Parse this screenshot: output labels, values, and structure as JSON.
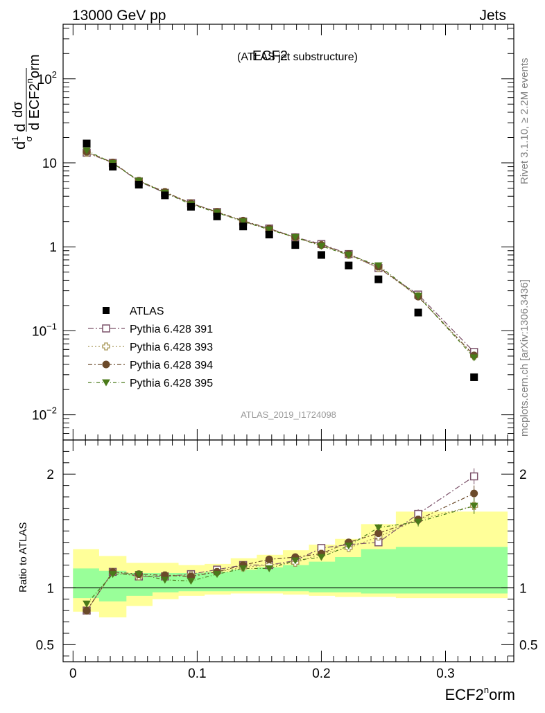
{
  "header": {
    "left": "13000 GeV pp",
    "right": "Jets"
  },
  "side_labels": {
    "rivet": "Rivet 3.1.10, ≥ 2.2M events",
    "mcplots": "mcplots.cern.ch [arXiv:1306.3436]"
  },
  "chart_data": {
    "type": "scatter",
    "title": "ECF2",
    "subtitle": "(ATLAS jet substructure)",
    "watermark": "ATLAS_2019_I1724098",
    "ylabel_main": "1/σ dσ/d ECF2^norm",
    "ylabel_ratio": "Ratio to ATLAS",
    "xlabel": "ECF2^norm",
    "xlim": [
      -0.008,
      0.355
    ],
    "ylim_main_log10": [
      -2.3,
      2.65
    ],
    "ylim_ratio": [
      0.35,
      2.3
    ],
    "log_y_main": true,
    "legend_position": "middle-left",
    "x_ticks": [
      "0",
      "0.1",
      "0.2",
      "0.3"
    ],
    "y_ticks_main": [
      "10^-2",
      "10^-1",
      "1",
      "10",
      "10^2"
    ],
    "y_ticks_ratio": [
      "0.5",
      "1",
      "2"
    ],
    "x": [
      0.011,
      0.032,
      0.053,
      0.074,
      0.095,
      0.116,
      0.137,
      0.158,
      0.179,
      0.2,
      0.222,
      0.246,
      0.278,
      0.323
    ],
    "bin_edges": [
      0,
      0.021,
      0.043,
      0.064,
      0.085,
      0.106,
      0.127,
      0.148,
      0.169,
      0.19,
      0.211,
      0.232,
      0.26,
      0.295,
      0.35
    ],
    "data": {
      "name": "ATLAS",
      "color": "#000000",
      "values": [
        17.0,
        9.0,
        5.5,
        4.1,
        3.0,
        2.3,
        1.75,
        1.4,
        1.05,
        0.8,
        0.6,
        0.41,
        0.165,
        0.028
      ]
    },
    "series": [
      {
        "name": "Pythia 6.428 391",
        "color": "#7a5068",
        "marker": "open-square",
        "dash": "8,3,2,3",
        "values": [
          13.2,
          10.0,
          6.0,
          4.4,
          3.3,
          2.6,
          2.0,
          1.65,
          1.3,
          1.08,
          0.82,
          0.56,
          0.27,
          0.056
        ]
      },
      {
        "name": "Pythia 6.428 393",
        "color": "#a89858",
        "marker": "open-cross",
        "dash": "2,3",
        "values": [
          13.2,
          10.0,
          6.1,
          4.5,
          3.3,
          2.6,
          2.0,
          1.62,
          1.28,
          1.05,
          0.8,
          0.56,
          0.26,
          0.05
        ]
      },
      {
        "name": "Pythia 6.428 394",
        "color": "#6b4a2a",
        "marker": "filled-circle",
        "dash": "6,3,2,3",
        "values": [
          13.5,
          10.1,
          6.1,
          4.5,
          3.3,
          2.6,
          2.05,
          1.65,
          1.3,
          1.05,
          0.82,
          0.58,
          0.255,
          0.051
        ]
      },
      {
        "name": "Pythia 6.428 395",
        "color": "#4a7a1a",
        "marker": "filled-triangle-down",
        "dash": "5,3,1,3",
        "values": [
          14.0,
          9.9,
          6.1,
          4.4,
          3.2,
          2.55,
          2.0,
          1.6,
          1.3,
          1.02,
          0.8,
          0.6,
          0.26,
          0.048
        ]
      }
    ],
    "ratios": [
      [
        0.8,
        1.14,
        1.1,
        1.1,
        1.12,
        1.16,
        1.2,
        1.2,
        1.24,
        1.35,
        1.38,
        1.4,
        1.65,
        1.98
      ],
      [
        0.8,
        1.14,
        1.1,
        1.11,
        1.11,
        1.14,
        1.18,
        1.2,
        1.22,
        1.3,
        1.35,
        1.45,
        1.6,
        1.72
      ],
      [
        0.8,
        1.14,
        1.12,
        1.11,
        1.1,
        1.14,
        1.2,
        1.25,
        1.27,
        1.3,
        1.4,
        1.48,
        1.6,
        1.83
      ],
      [
        0.86,
        1.12,
        1.12,
        1.07,
        1.06,
        1.12,
        1.17,
        1.17,
        1.24,
        1.27,
        1.37,
        1.53,
        1.58,
        1.72
      ]
    ],
    "ratio_errors": [
      [
        0.02,
        0.01,
        0.01,
        0.01,
        0.01,
        0.01,
        0.01,
        0.01,
        0.01,
        0.02,
        0.02,
        0.03,
        0.04,
        0.07
      ],
      [
        0.02,
        0.01,
        0.01,
        0.01,
        0.01,
        0.01,
        0.01,
        0.01,
        0.01,
        0.02,
        0.02,
        0.03,
        0.04,
        0.07
      ],
      [
        0.02,
        0.01,
        0.01,
        0.01,
        0.01,
        0.01,
        0.01,
        0.01,
        0.01,
        0.02,
        0.02,
        0.03,
        0.04,
        0.07
      ],
      [
        0.02,
        0.01,
        0.01,
        0.01,
        0.01,
        0.01,
        0.01,
        0.01,
        0.01,
        0.02,
        0.02,
        0.03,
        0.04,
        0.07
      ]
    ],
    "band_outer": {
      "color": "#ffff99",
      "lo": [
        0.79,
        0.74,
        0.84,
        0.9,
        0.93,
        0.94,
        0.95,
        0.95,
        0.94,
        0.93,
        0.92,
        0.92,
        0.91,
        0.91
      ],
      "hi": [
        1.34,
        1.28,
        1.22,
        1.22,
        1.2,
        1.21,
        1.26,
        1.29,
        1.33,
        1.38,
        1.43,
        1.56,
        1.67,
        1.67
      ]
    },
    "band_inner": {
      "color": "#99ff99",
      "lo": [
        0.91,
        0.88,
        0.93,
        0.96,
        0.97,
        0.97,
        0.97,
        0.97,
        0.97,
        0.96,
        0.96,
        0.95,
        0.95,
        0.95
      ],
      "hi": [
        1.17,
        1.15,
        1.13,
        1.13,
        1.13,
        1.14,
        1.16,
        1.18,
        1.2,
        1.23,
        1.27,
        1.34,
        1.36,
        1.36
      ]
    }
  }
}
